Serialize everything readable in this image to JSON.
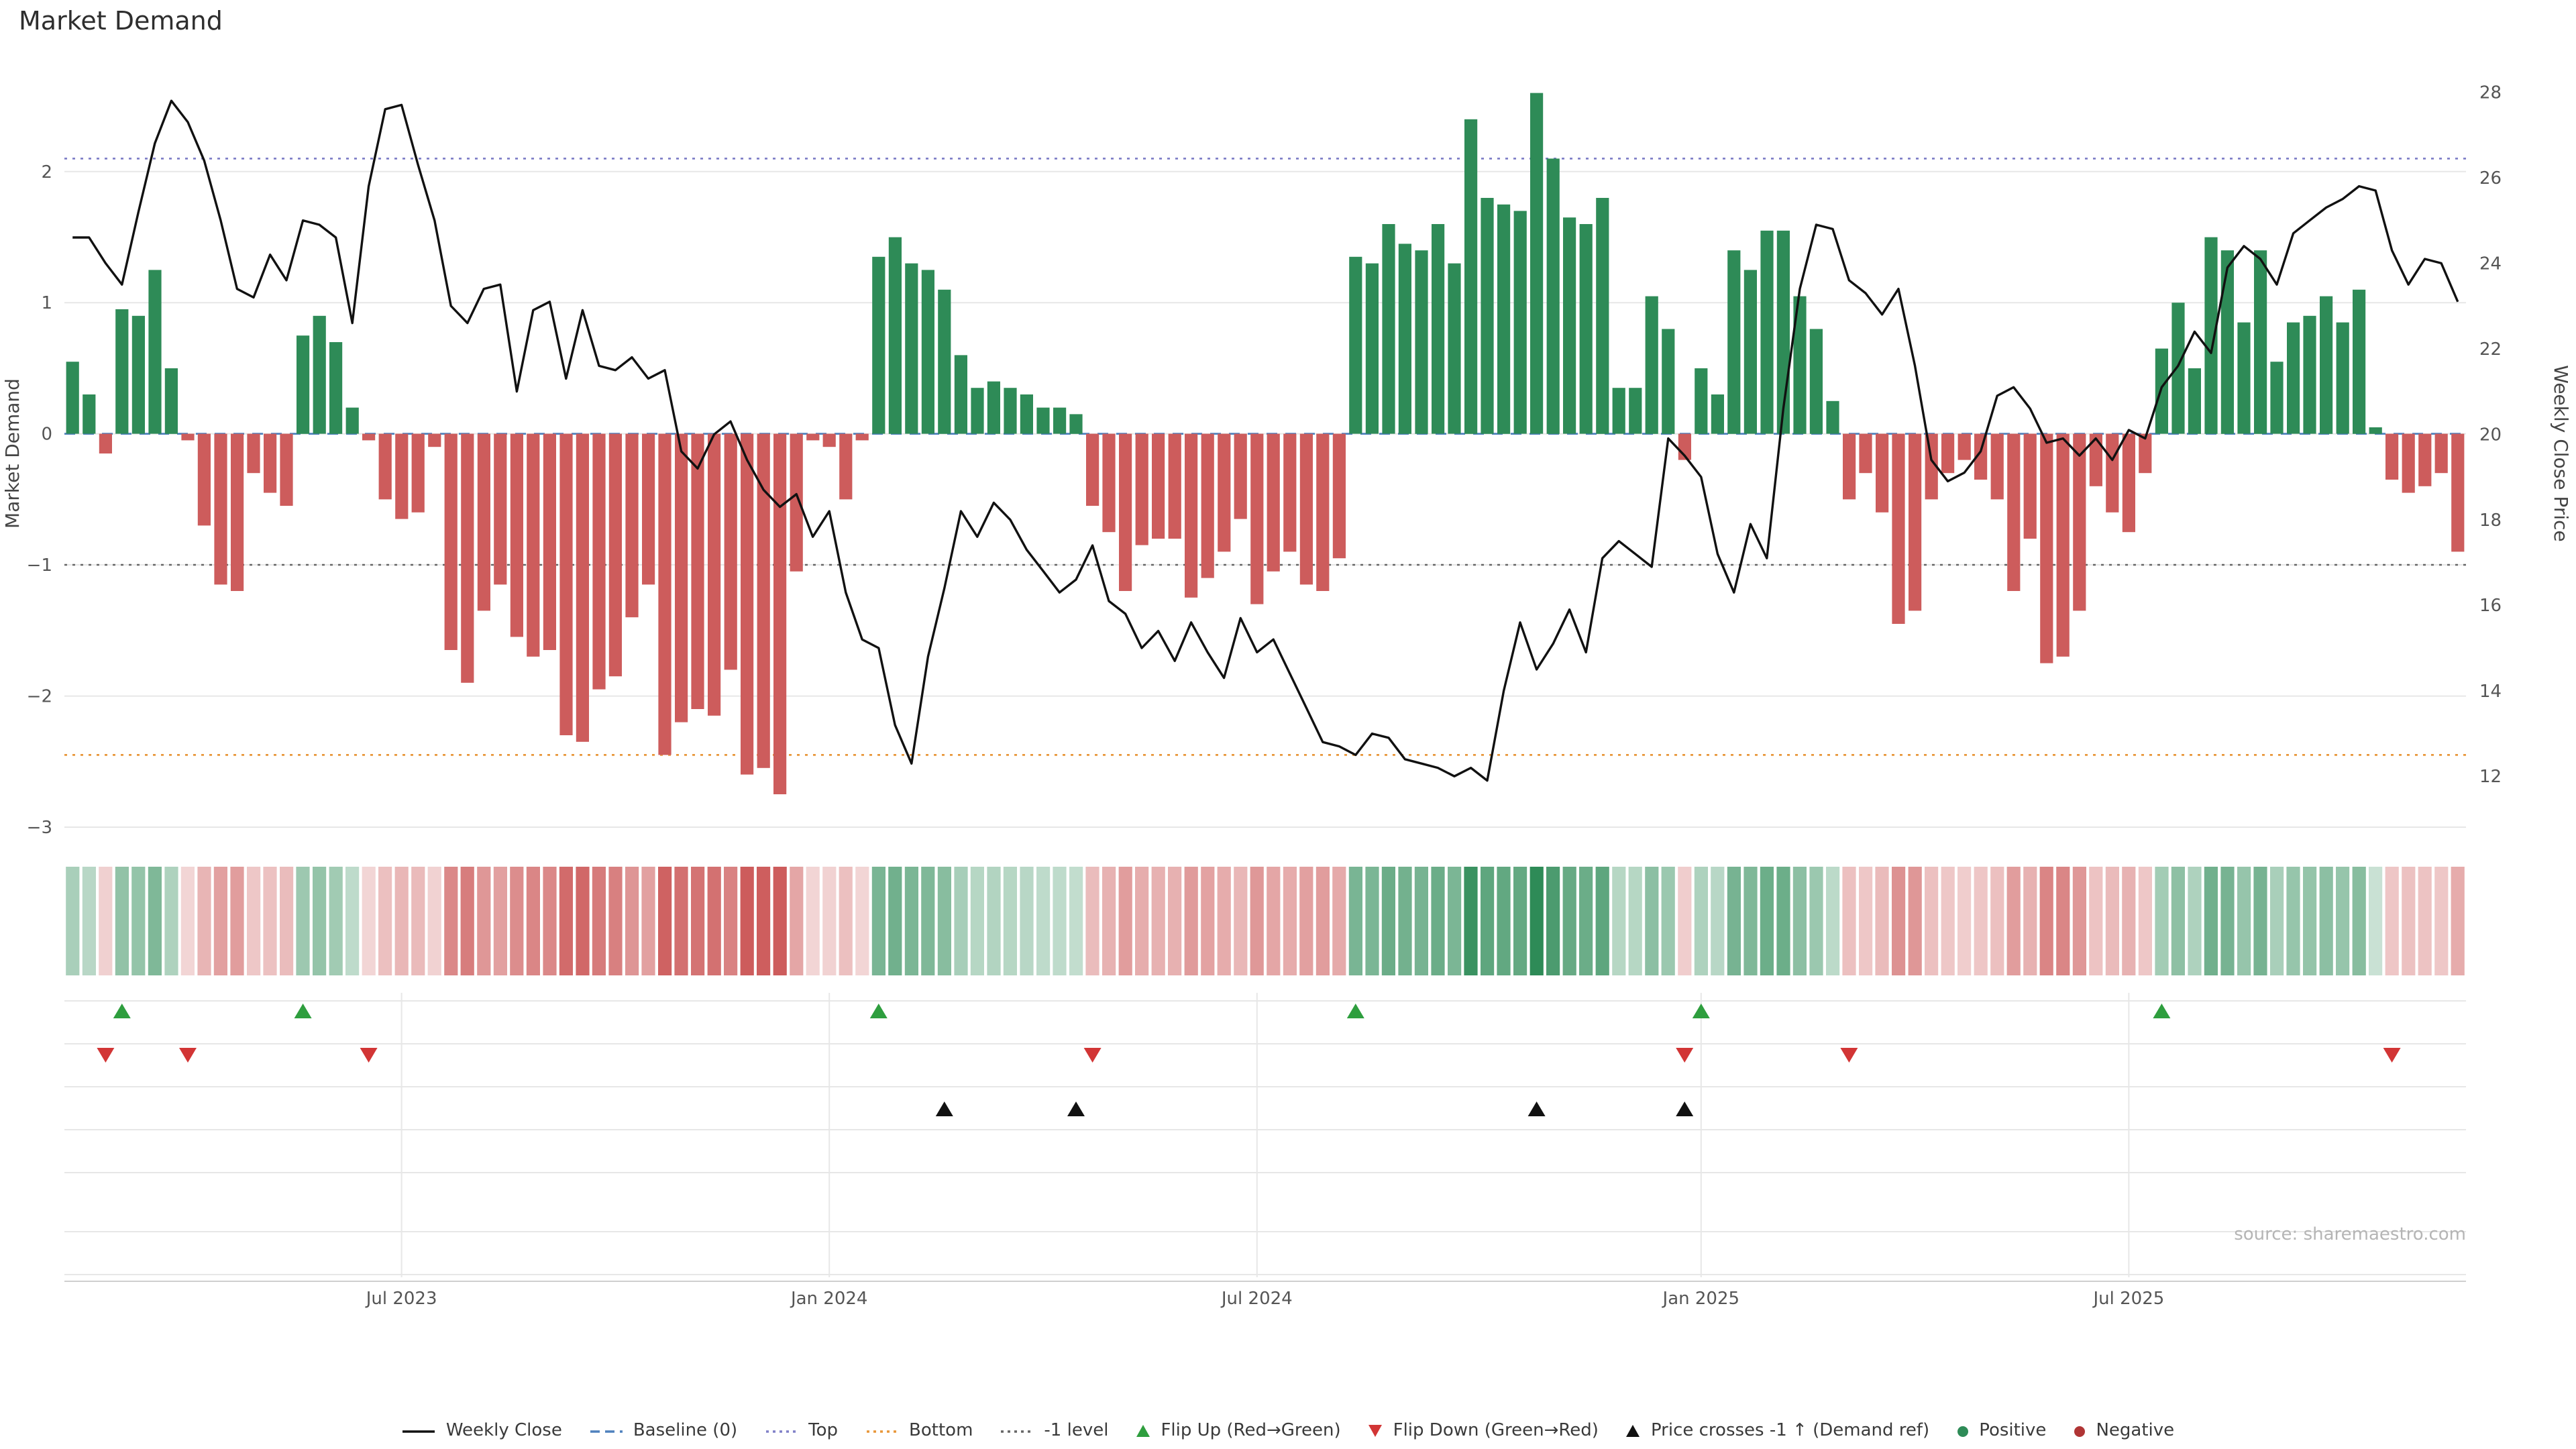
{
  "title": "Market Demand",
  "source": "source: sharemaestro.com",
  "axes": {
    "left_label": "Market Demand",
    "right_label": "Weekly Close Price",
    "left_ticks": [
      -3,
      -2,
      -1,
      0,
      1,
      2
    ],
    "right_ticks": [
      12,
      14,
      16,
      18,
      20,
      22,
      24,
      26,
      28
    ],
    "demand_ylim": [
      -3.2,
      2.9
    ],
    "price_ylim": [
      10.2,
      28.9
    ],
    "x_ticks": [
      {
        "week": 20,
        "label": "Jul 2023"
      },
      {
        "week": 46,
        "label": "Jan 2024"
      },
      {
        "week": 72,
        "label": "Jul 2024"
      },
      {
        "week": 99,
        "label": "Jan 2025"
      },
      {
        "week": 125,
        "label": "Jul 2025"
      }
    ]
  },
  "chart_data": {
    "type": "bar+line",
    "panels": [
      "demand-bars-with-price-line",
      "demand-heatmap-strip",
      "event-markers"
    ],
    "x_unit": "week-index",
    "baseline": 0,
    "top_level": 2.1,
    "bottom_level": -2.45,
    "minus1_level": -1,
    "demand": [
      0.55,
      0.3,
      -0.15,
      0.95,
      0.9,
      1.25,
      0.5,
      -0.05,
      -0.7,
      -1.15,
      -1.2,
      -0.3,
      -0.45,
      -0.55,
      0.75,
      0.9,
      0.7,
      0.2,
      -0.05,
      -0.5,
      -0.65,
      -0.6,
      -0.1,
      -1.65,
      -1.9,
      -1.35,
      -1.15,
      -1.55,
      -1.7,
      -1.65,
      -2.3,
      -2.35,
      -1.95,
      -1.85,
      -1.4,
      -1.15,
      -2.45,
      -2.2,
      -2.1,
      -2.15,
      -1.8,
      -2.6,
      -2.55,
      -2.75,
      -1.05,
      -0.05,
      -0.1,
      -0.5,
      -0.05,
      1.35,
      1.5,
      1.3,
      1.25,
      1.1,
      0.6,
      0.35,
      0.4,
      0.35,
      0.3,
      0.2,
      0.2,
      0.15,
      -0.55,
      -0.75,
      -1.2,
      -0.85,
      -0.8,
      -0.8,
      -1.25,
      -1.1,
      -0.9,
      -0.65,
      -1.3,
      -1.05,
      -0.9,
      -1.15,
      -1.2,
      -0.95,
      1.35,
      1.3,
      1.6,
      1.45,
      1.4,
      1.6,
      1.3,
      2.4,
      1.8,
      1.75,
      1.7,
      2.6,
      2.1,
      1.65,
      1.6,
      1.8,
      0.35,
      0.35,
      1.05,
      0.8,
      -0.2,
      0.5,
      0.3,
      1.4,
      1.25,
      1.55,
      1.55,
      1.05,
      0.8,
      0.25,
      -0.5,
      -0.3,
      -0.6,
      -1.45,
      -1.35,
      -0.5,
      -0.3,
      -0.2,
      -0.35,
      -0.5,
      -1.2,
      -0.8,
      -1.75,
      -1.7,
      -1.35,
      -0.4,
      -0.6,
      -0.75,
      -0.3,
      0.65,
      1.0,
      0.5,
      1.5,
      1.4,
      0.85,
      1.4,
      0.55,
      0.85,
      0.9,
      1.05,
      0.85,
      1.1,
      0.05,
      -0.35,
      -0.45,
      -0.4,
      -0.3,
      -0.9
    ],
    "weekly_close": [
      24.6,
      24.6,
      24.0,
      23.5,
      25.2,
      26.8,
      27.8,
      27.3,
      26.4,
      25.0,
      23.4,
      23.2,
      24.2,
      23.6,
      25.0,
      24.9,
      24.6,
      22.6,
      25.8,
      27.6,
      27.7,
      26.3,
      25.0,
      23.0,
      22.6,
      23.4,
      23.5,
      21.0,
      22.9,
      23.1,
      21.3,
      22.9,
      21.6,
      21.5,
      21.8,
      21.3,
      21.5,
      19.6,
      19.2,
      20.0,
      20.3,
      19.4,
      18.7,
      18.3,
      18.6,
      17.6,
      18.2,
      16.3,
      15.2,
      15.0,
      13.2,
      12.3,
      14.8,
      16.4,
      18.2,
      17.6,
      18.4,
      18.0,
      17.3,
      16.8,
      16.3,
      16.6,
      17.4,
      16.1,
      15.8,
      15.0,
      15.4,
      14.7,
      15.6,
      14.9,
      14.3,
      15.7,
      14.9,
      15.2,
      14.4,
      13.6,
      12.8,
      12.7,
      12.5,
      13.0,
      12.9,
      12.4,
      12.3,
      12.2,
      12.0,
      12.2,
      11.9,
      14.0,
      15.6,
      14.5,
      15.1,
      15.9,
      14.9,
      17.1,
      17.5,
      17.2,
      16.9,
      19.9,
      19.5,
      19.0,
      17.2,
      16.3,
      17.9,
      17.1,
      20.6,
      23.4,
      24.9,
      24.8,
      23.6,
      23.3,
      22.8,
      23.4,
      21.6,
      19.4,
      18.9,
      19.1,
      19.6,
      20.9,
      21.1,
      20.6,
      19.8,
      19.9,
      19.5,
      19.9,
      19.4,
      20.1,
      19.9,
      21.1,
      21.6,
      22.4,
      21.9,
      23.9,
      24.4,
      24.1,
      23.5,
      24.7,
      25.0,
      25.3,
      25.5,
      25.8,
      25.7,
      24.3,
      23.5,
      24.1,
      24.0,
      23.1
    ],
    "flip_up_weeks": [
      3,
      14,
      49,
      78,
      99,
      127
    ],
    "flip_down_weeks": [
      2,
      7,
      18,
      62,
      98,
      108,
      141
    ],
    "price_cross_weeks": [
      53,
      61,
      89,
      98
    ]
  },
  "colors": {
    "positive": "#2e8b57",
    "negative": "#cd5c5c",
    "price_line": "#111111",
    "baseline": "#4f81bd",
    "top_line": "#8080c8",
    "bottom_line": "#e8973a",
    "minus1_line": "#666666",
    "flip_up": "#2e9e3e",
    "flip_down": "#d23535",
    "price_cross": "#111111",
    "grid": "#e7e7e7",
    "axis_line": "#cfcfcf"
  },
  "legend": [
    {
      "label": "Weekly Close",
      "type": "line",
      "color": "#111111",
      "icon": "weekly-close-line"
    },
    {
      "label": "Baseline (0)",
      "type": "dashed",
      "color": "#4f81bd",
      "icon": "baseline-dash"
    },
    {
      "label": "Top",
      "type": "dotted",
      "color": "#8080c8",
      "icon": "top-dotted"
    },
    {
      "label": "Bottom",
      "type": "dotted",
      "color": "#e8973a",
      "icon": "bottom-dotted"
    },
    {
      "label": "-1 level",
      "type": "dotted",
      "color": "#666666",
      "icon": "minus1-dotted"
    },
    {
      "label": "Flip Up (Red→Green)",
      "type": "tri-up",
      "color": "#2e9e3e",
      "icon": "flip-up-triangle"
    },
    {
      "label": "Flip Down (Green→Red)",
      "type": "tri-down",
      "color": "#d23535",
      "icon": "flip-down-triangle"
    },
    {
      "label": "Price crosses -1 ↑ (Demand ref)",
      "type": "tri-up",
      "color": "#111111",
      "icon": "price-cross-triangle"
    },
    {
      "label": "Positive",
      "type": "dot",
      "color": "#2e8b57",
      "icon": "positive-dot"
    },
    {
      "label": "Negative",
      "type": "dot",
      "color": "#b03535",
      "icon": "negative-dot"
    }
  ]
}
